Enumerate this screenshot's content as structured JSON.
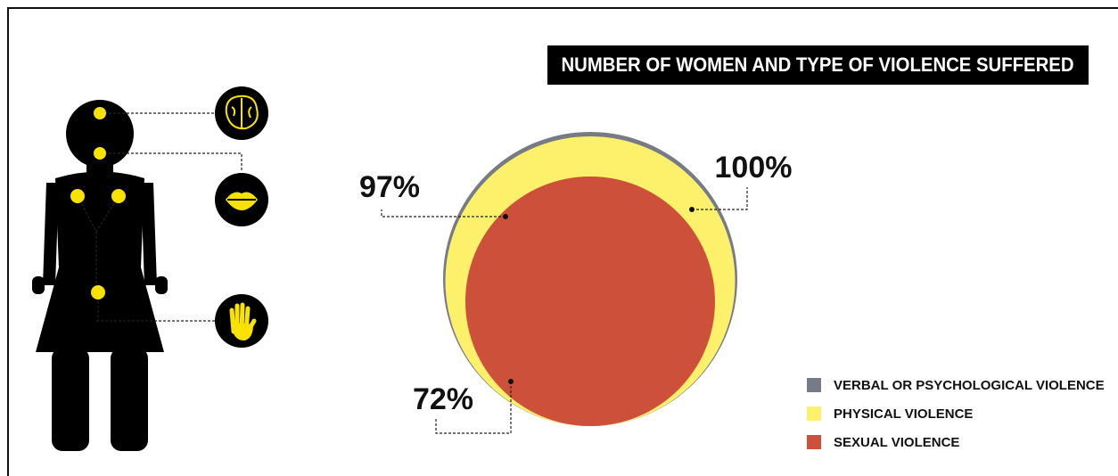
{
  "chart_data": {
    "type": "nested-circles",
    "title": "NUMBER OF WOMEN AND TYPE OF VIOLENCE SUFFERED",
    "categories": [
      "VERBAL OR PSYCHOLOGICAL VIOLENCE",
      "PHYSICAL VIOLENCE",
      "SEXUAL VIOLENCE"
    ],
    "values": [
      100,
      97,
      72
    ],
    "value_labels": [
      "100%",
      "97%",
      "72%"
    ],
    "colors": [
      "#767b85",
      "#fdf06b",
      "#cc503a"
    ]
  }
}
